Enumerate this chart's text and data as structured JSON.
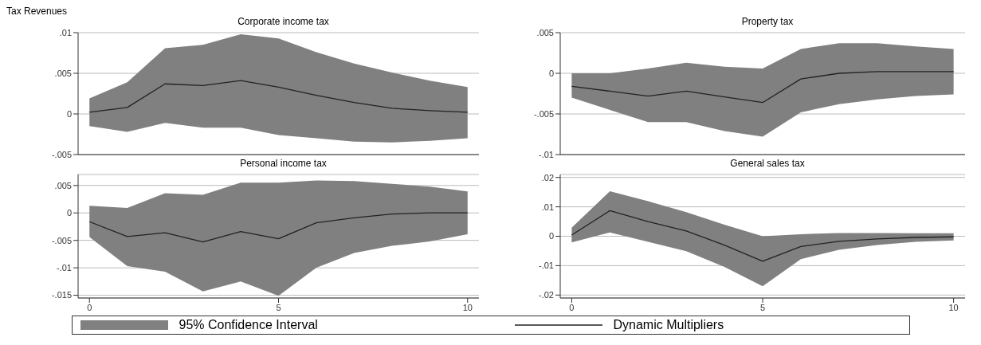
{
  "chart_data": [
    {
      "type": "line",
      "title": "Corporate income tax",
      "annotations": [
        "Tax Revenues"
      ],
      "x": [
        0,
        1,
        2,
        3,
        4,
        5,
        6,
        7,
        8,
        9,
        10
      ],
      "xlim": [
        -0.3,
        10.3
      ],
      "xticks": [
        0,
        5,
        10
      ],
      "ylim": [
        -0.005,
        0.01
      ],
      "yticks": [
        {
          "value": -0.005,
          "label": "-.005"
        },
        {
          "value": 0,
          "label": "0"
        },
        {
          "value": 0.005,
          "label": ".005"
        },
        {
          "value": 0.01,
          "label": ".01"
        }
      ],
      "grid": "y",
      "tick_labels": "y",
      "series": [
        {
          "color": "#222222",
          "values": [
            0.0002,
            0.0008,
            0.0037,
            0.0035,
            0.0041,
            0.0033,
            0.0023,
            0.0014,
            0.0007,
            0.0004,
            0.0002
          ],
          "lower": [
            -0.0015,
            -0.0022,
            -0.0011,
            -0.0017,
            -0.0017,
            -0.0026,
            -0.003,
            -0.0034,
            -0.0035,
            -0.0033,
            -0.003
          ],
          "upper": [
            0.0019,
            0.0039,
            0.0081,
            0.0085,
            0.0098,
            0.0093,
            0.0076,
            0.0062,
            0.0051,
            0.0041,
            0.0033
          ]
        }
      ]
    },
    {
      "type": "line",
      "title": "Property tax",
      "x": [
        0,
        1,
        2,
        3,
        4,
        5,
        6,
        7,
        8,
        9,
        10
      ],
      "xlim": [
        -0.3,
        10.3
      ],
      "xticks": [
        0,
        5,
        10
      ],
      "ylim": [
        -0.01,
        0.005
      ],
      "yticks": [
        {
          "value": -0.01,
          "label": "-.01"
        },
        {
          "value": -0.005,
          "label": "-.005"
        },
        {
          "value": 0,
          "label": "0"
        },
        {
          "value": 0.005,
          "label": ".005"
        }
      ],
      "grid": "y",
      "tick_labels": "y",
      "series": [
        {
          "color": "#222222",
          "values": [
            -0.0016,
            -0.0022,
            -0.0028,
            -0.0022,
            -0.0029,
            -0.0036,
            -0.0007,
            0,
            0.0002,
            0.0002,
            0.0002
          ],
          "lower": [
            -0.003,
            -0.0045,
            -0.006,
            -0.006,
            -0.0071,
            -0.0078,
            -0.0048,
            -0.0038,
            -0.0032,
            -0.0028,
            -0.0026
          ],
          "upper": [
            0,
            0,
            0.0006,
            0.0013,
            0.0008,
            0.0006,
            0.003,
            0.0037,
            0.0037,
            0.0033,
            0.003
          ]
        }
      ]
    },
    {
      "type": "line",
      "title": "Personal income tax",
      "x": [
        0,
        1,
        2,
        3,
        4,
        5,
        6,
        7,
        8,
        9,
        10
      ],
      "xlim": [
        -0.3,
        10.3
      ],
      "xticks": [
        0,
        5,
        10
      ],
      "ylim": [
        -0.0155,
        0.007
      ],
      "yticks": [
        {
          "value": -0.015,
          "label": "-.015"
        },
        {
          "value": -0.01,
          "label": "-.01"
        },
        {
          "value": -0.005,
          "label": "-.005"
        },
        {
          "value": 0,
          "label": "0"
        },
        {
          "value": 0.005,
          "label": ".005"
        }
      ],
      "grid": "y",
      "series": [
        {
          "color": "#222222",
          "values": [
            -0.0016,
            -0.0043,
            -0.0036,
            -0.0053,
            -0.0034,
            -0.0047,
            -0.0018,
            -0.0009,
            -0.0002,
            0,
            0
          ],
          "lower": [
            -0.0044,
            -0.0097,
            -0.0107,
            -0.0143,
            -0.0125,
            -0.0151,
            -0.01,
            -0.0073,
            -0.006,
            -0.0052,
            -0.0039
          ],
          "upper": [
            0.0013,
            0.0009,
            0.0036,
            0.0033,
            0.0055,
            0.0055,
            0.0059,
            0.0058,
            0.0053,
            0.0048,
            0.0039
          ]
        }
      ]
    },
    {
      "type": "line",
      "title": "General sales tax",
      "annotations": [
        "95% Confidence Interval"
      ],
      "x": [
        0,
        1,
        2,
        3,
        4,
        5,
        6,
        7,
        8,
        9,
        10
      ],
      "xlim": [
        -0.3,
        10.3
      ],
      "xticks": [
        0,
        5,
        10
      ],
      "ylim": [
        -0.021,
        0.021
      ],
      "yticks": [
        {
          "value": -0.02,
          "label": "-.02"
        },
        {
          "value": -0.01,
          "label": "-.01"
        },
        {
          "value": 0,
          "label": "0"
        },
        {
          "value": 0.01,
          "label": ".01"
        },
        {
          "value": 0.02,
          "label": ".02"
        }
      ],
      "grid": "y",
      "legend": "bottom",
      "series": [
        {
          "name": "Dynamic Multipliers",
          "color": "#222222",
          "values": [
            0.0004,
            0.0087,
            0.005,
            0.0018,
            -0.003,
            -0.0085,
            -0.0035,
            -0.0017,
            -0.0009,
            -0.0004,
            -0.0002
          ],
          "lower": [
            -0.0021,
            0.0013,
            -0.0019,
            -0.0051,
            -0.0104,
            -0.017,
            -0.0078,
            -0.0046,
            -0.003,
            -0.0019,
            -0.0014
          ],
          "upper": [
            0.0029,
            0.0153,
            0.0119,
            0.0082,
            0.0039,
            0,
            0.0007,
            0.0011,
            0.0011,
            0.001,
            0.001
          ]
        }
      ]
    }
  ]
}
